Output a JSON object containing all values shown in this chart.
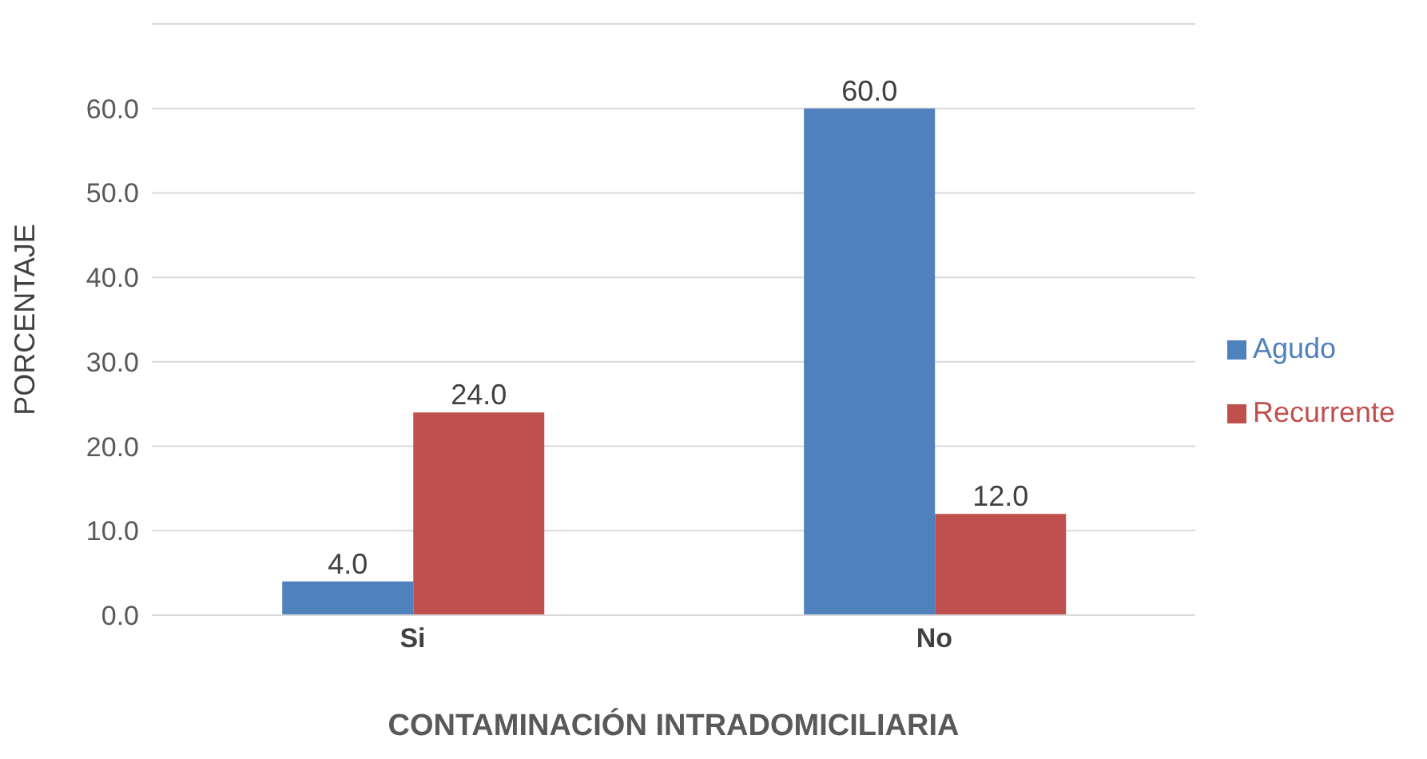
{
  "chart_data": {
    "type": "bar",
    "xlabel": "CONTAMINACIÓN INTRADOMICILIARIA",
    "ylabel": "PORCENTAJE",
    "categories": [
      "Si",
      "No"
    ],
    "series": [
      {
        "name": "Agudo",
        "color": "#4f81bd",
        "values": [
          4.0,
          60.0
        ],
        "value_labels": [
          "4.0",
          "60.0"
        ]
      },
      {
        "name": "Recurrente",
        "color": "#c0504d",
        "values": [
          24.0,
          12.0
        ],
        "value_labels": [
          "24.0",
          "12.0"
        ]
      }
    ],
    "ylim": [
      0,
      70
    ],
    "yticks": [
      {
        "value": 0,
        "label": "0.0"
      },
      {
        "value": 10,
        "label": "10.0"
      },
      {
        "value": 20,
        "label": "20.0"
      },
      {
        "value": 30,
        "label": "30.0"
      },
      {
        "value": 40,
        "label": "40.0"
      },
      {
        "value": 50,
        "label": "50.0"
      },
      {
        "value": 60,
        "label": "60.0"
      },
      {
        "value": 70,
        "label": null
      }
    ],
    "grid": "y",
    "legend": "right"
  }
}
